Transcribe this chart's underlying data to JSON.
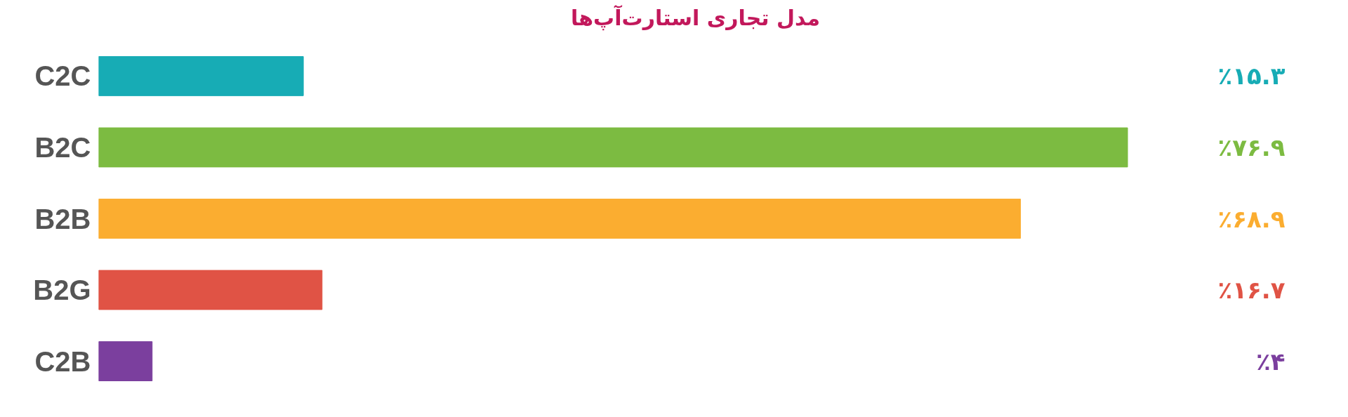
{
  "chart_data": {
    "type": "bar",
    "orientation": "horizontal",
    "title": "مدل تجاری استارت‌آپ‌ها",
    "categories": [
      "C2C",
      "B2C",
      "B2B",
      "B2G",
      "C2B"
    ],
    "values": [
      15.3,
      76.9,
      68.9,
      16.7,
      4
    ],
    "colors": [
      "#17acb5",
      "#7cbb41",
      "#fbad30",
      "#e05345",
      "#7b3f9e"
    ],
    "value_labels": [
      "٪۱۵.۳",
      "٪۷۶.۹",
      "٪۶۸.۹",
      "٪۱۶.۷",
      "٪۴"
    ],
    "tick_labels": "y",
    "grid": false
  }
}
